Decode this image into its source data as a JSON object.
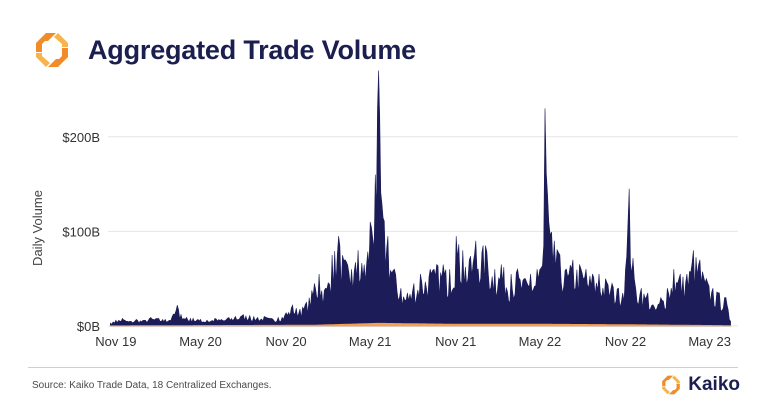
{
  "header": {
    "title": "Aggregated Trade Volume"
  },
  "footer": {
    "source": "Source: Kaiko Trade Data, 18 Centralized Exchanges.",
    "brand": "Kaiko"
  },
  "colors": {
    "volume": "#1c1c58",
    "secondary": "#f5a04a",
    "title": "#1b1f4f",
    "logo_orange": "#f28c28",
    "logo_yellow": "#f8b44c"
  },
  "icons": {
    "logo": "kaiko-logo-icon"
  },
  "chart_data": {
    "type": "area",
    "title": "Aggregated Trade Volume",
    "xlabel": "",
    "ylabel": "Daily Volume",
    "y_unit": "USD billions",
    "ylim": [
      0,
      260
    ],
    "yticks": [
      0,
      100,
      200
    ],
    "ytick_labels": [
      "$0B",
      "$100B",
      "$200B"
    ],
    "xlim": [
      "2019-10-15",
      "2023-07-01"
    ],
    "xticks": [
      "2019-11-01",
      "2020-05-01",
      "2020-11-01",
      "2021-05-01",
      "2021-11-01",
      "2022-05-01",
      "2022-11-01",
      "2023-05-01"
    ],
    "xtick_labels": [
      "Nov 19",
      "May 20",
      "Nov 20",
      "May 21",
      "Nov 21",
      "May 22",
      "Nov 22",
      "May 23"
    ],
    "grid": true,
    "series": [
      {
        "values_description": "approximate daily volume envelope in USD billions (weekly resolution)",
        "x": [
          "2019-10-20",
          "2019-11-01",
          "2019-11-15",
          "2019-12-01",
          "2019-12-15",
          "2020-01-01",
          "2020-01-15",
          "2020-02-01",
          "2020-02-15",
          "2020-03-01",
          "2020-03-12",
          "2020-03-20",
          "2020-04-01",
          "2020-04-15",
          "2020-05-01",
          "2020-05-15",
          "2020-06-01",
          "2020-06-15",
          "2020-07-01",
          "2020-07-15",
          "2020-08-01",
          "2020-08-15",
          "2020-09-01",
          "2020-09-15",
          "2020-10-01",
          "2020-10-15",
          "2020-11-01",
          "2020-11-15",
          "2020-12-01",
          "2020-12-15",
          "2021-01-01",
          "2021-01-11",
          "2021-01-25",
          "2021-02-08",
          "2021-02-22",
          "2021-03-08",
          "2021-03-22",
          "2021-04-05",
          "2021-04-18",
          "2021-05-01",
          "2021-05-12",
          "2021-05-19",
          "2021-05-26",
          "2021-06-08",
          "2021-06-22",
          "2021-07-06",
          "2021-07-20",
          "2021-08-03",
          "2021-08-17",
          "2021-09-07",
          "2021-09-21",
          "2021-10-05",
          "2021-10-19",
          "2021-11-02",
          "2021-11-16",
          "2021-11-30",
          "2021-12-14",
          "2022-01-04",
          "2022-01-24",
          "2022-02-07",
          "2022-02-28",
          "2022-03-14",
          "2022-03-28",
          "2022-04-11",
          "2022-04-25",
          "2022-05-09",
          "2022-05-12",
          "2022-05-20",
          "2022-06-01",
          "2022-06-13",
          "2022-06-27",
          "2022-07-11",
          "2022-07-25",
          "2022-08-08",
          "2022-08-22",
          "2022-09-05",
          "2022-09-19",
          "2022-10-03",
          "2022-10-17",
          "2022-11-01",
          "2022-11-09",
          "2022-11-20",
          "2022-12-05",
          "2022-12-19",
          "2023-01-02",
          "2023-01-16",
          "2023-01-30",
          "2023-02-13",
          "2023-02-27",
          "2023-03-13",
          "2023-03-27",
          "2023-04-10",
          "2023-04-24",
          "2023-05-08",
          "2023-05-22",
          "2023-06-05",
          "2023-06-15"
        ],
        "values": [
          3,
          6,
          8,
          5,
          7,
          6,
          9,
          8,
          7,
          10,
          22,
          12,
          9,
          8,
          7,
          6,
          8,
          7,
          9,
          10,
          12,
          11,
          9,
          10,
          8,
          9,
          14,
          22,
          18,
          25,
          45,
          55,
          40,
          75,
          95,
          70,
          60,
          80,
          65,
          110,
          160,
          270,
          130,
          95,
          60,
          40,
          35,
          45,
          55,
          60,
          65,
          65,
          60,
          95,
          80,
          70,
          90,
          85,
          60,
          65,
          55,
          60,
          50,
          55,
          60,
          85,
          230,
          110,
          90,
          75,
          60,
          70,
          65,
          60,
          55,
          55,
          50,
          45,
          40,
          60,
          145,
          50,
          40,
          35,
          20,
          30,
          40,
          60,
          55,
          55,
          80,
          70,
          50,
          40,
          35,
          30,
          5
        ]
      },
      {
        "values_description": "smaller secondary series in orange, USD billions",
        "x": [
          "2019-10-20",
          "2021-01-01",
          "2021-05-19",
          "2021-11-01",
          "2022-05-12",
          "2022-11-09",
          "2023-06-15"
        ],
        "values": [
          0.3,
          1,
          3,
          2,
          2,
          1.5,
          0.5
        ]
      }
    ]
  }
}
